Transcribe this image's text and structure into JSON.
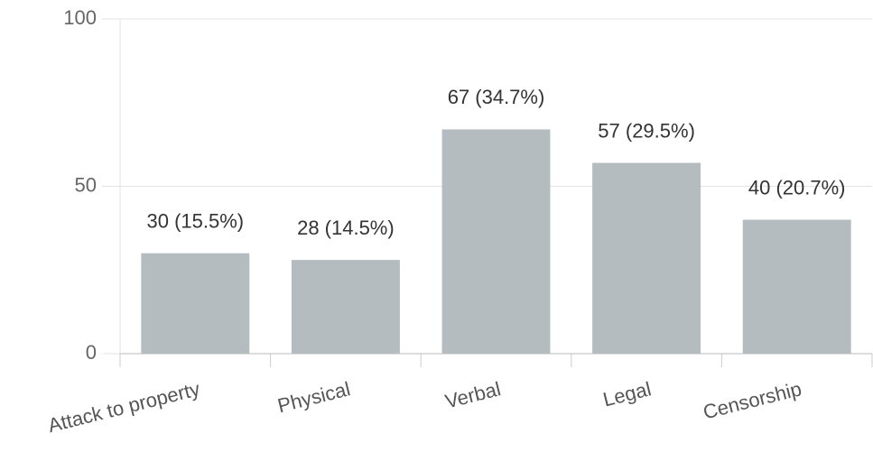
{
  "chart_data": {
    "type": "bar",
    "categories": [
      "Attack to property",
      "Physical",
      "Verbal",
      "Legal",
      "Censorship"
    ],
    "values": [
      30,
      28,
      67,
      57,
      40
    ],
    "value_labels": [
      "30 (15.5%)",
      "28 (14.5%)",
      "67 (34.7%)",
      "57 (29.5%)",
      "40 (20.7%)"
    ],
    "color": "#b5bcbf",
    "ylim": [
      0,
      100
    ],
    "yticks": [
      0,
      50,
      100
    ],
    "grid": true
  }
}
